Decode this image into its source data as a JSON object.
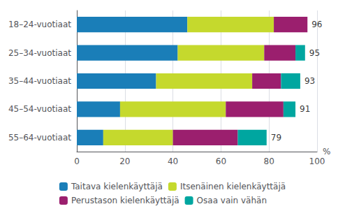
{
  "chart_data": {
    "type": "bar",
    "orientation": "horizontal",
    "stacked": true,
    "categories": [
      "18–24-vuotiaat",
      "25–34-vuotiaat",
      "35–44-vuotiaat",
      "45–54-vuotiaat",
      "55–64-vuotiaat"
    ],
    "series": [
      {
        "name": "Taitava kielenkäyttäjä",
        "color": "#1a7eb8",
        "values": [
          46,
          42,
          33,
          18,
          11
        ]
      },
      {
        "name": "Itsenäinen kielenkäyttäjä",
        "color": "#c5d92d",
        "values": [
          36,
          36,
          40,
          44,
          29
        ]
      },
      {
        "name": "Perustason kielenkäyttäjä",
        "color": "#9b1f6e",
        "values": [
          14,
          13,
          12,
          24,
          27
        ]
      },
      {
        "name": "Osaa vain vähän",
        "color": "#00a6a0",
        "values": [
          0,
          4,
          8,
          5,
          12
        ]
      }
    ],
    "totals": [
      96,
      95,
      93,
      91,
      79
    ],
    "xlabel": "%",
    "xlim": [
      0,
      100
    ],
    "xticks": [
      0,
      20,
      40,
      60,
      80,
      100
    ],
    "grid": true,
    "legend": "bottom"
  }
}
